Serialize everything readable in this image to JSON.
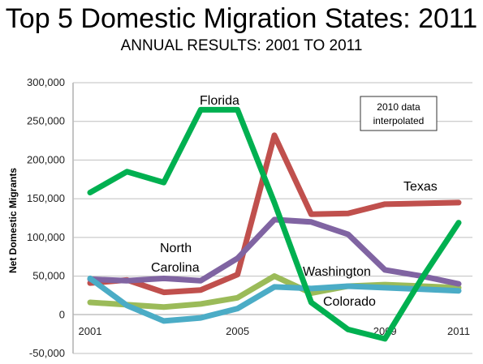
{
  "title": "Top 5 Domestic Migration States: 2011",
  "subtitle": "ANNUAL RESULTS: 2001 TO 2011",
  "chart_data": {
    "type": "line",
    "title": "Top 5 Domestic Migration States: 2011",
    "subtitle": "ANNUAL RESULTS: 2001 TO 2011",
    "ylabel": "Net Domestic Migrants",
    "xlabel": "",
    "x": [
      2001,
      2002,
      2003,
      2004,
      2005,
      2006,
      2007,
      2008,
      2009,
      2010,
      2011
    ],
    "x_tick_labels": [
      "2001",
      "2005",
      "2009",
      "2011"
    ],
    "x_tick_values": [
      2001,
      2005,
      2009,
      2011
    ],
    "ylim": [
      -50000,
      300000
    ],
    "y_ticks": [
      -50000,
      0,
      50000,
      100000,
      150000,
      200000,
      250000,
      300000
    ],
    "y_tick_labels": [
      "-50,000",
      "0",
      "50,000",
      "100,000",
      "150,000",
      "200,000",
      "250,000",
      "300,000"
    ],
    "grid": "horizontal",
    "series": [
      {
        "name": "Texas",
        "color": "#c0504d",
        "values": [
          41000,
          45000,
          29000,
          32000,
          52000,
          232000,
          130000,
          131000,
          143000,
          144000,
          145000
        ]
      },
      {
        "name": "Washington",
        "color": "#9bbb59",
        "values": [
          16000,
          13000,
          10000,
          14000,
          22000,
          50000,
          28000,
          37000,
          39000,
          37000,
          35000
        ]
      },
      {
        "name": "North Carolina",
        "color": "#8064a2",
        "values": [
          46000,
          44000,
          47000,
          44000,
          73000,
          123000,
          120000,
          104000,
          58000,
          50000,
          40000
        ]
      },
      {
        "name": "Colorado",
        "color": "#4bacc6",
        "values": [
          47000,
          12000,
          -8000,
          -4000,
          8000,
          36000,
          34000,
          37000,
          35000,
          33000,
          31000
        ]
      },
      {
        "name": "Florida",
        "color": "#00b050",
        "values": [
          158000,
          185000,
          171000,
          265000,
          265000,
          145000,
          16000,
          -19000,
          -31000,
          47000,
          119000
        ]
      }
    ],
    "annotations": [
      "2010 data interpolated"
    ]
  }
}
